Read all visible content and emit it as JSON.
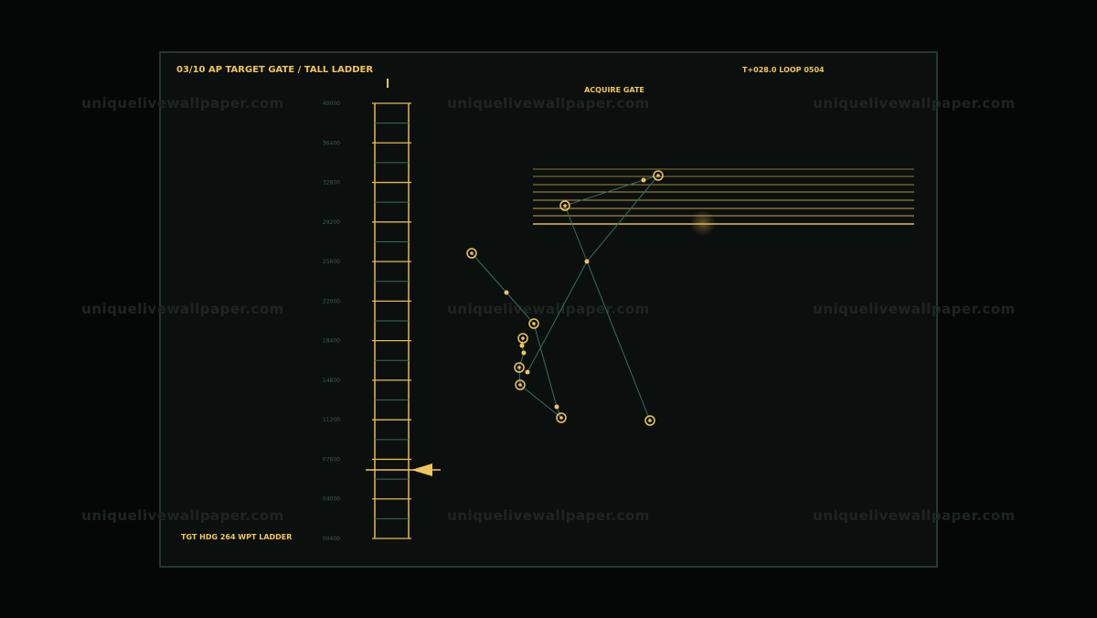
{
  "header": {
    "title": "03/10  AP TARGET GATE / TALL LADDER",
    "status": "T+028.0  LOOP 0504"
  },
  "gate": {
    "label": "ACQUIRE  GATE"
  },
  "ladder": {
    "labels": [
      "40000",
      "36400",
      "32800",
      "29200",
      "25600",
      "22000",
      "18400",
      "14800",
      "11200",
      "07600",
      "04000",
      "00400"
    ]
  },
  "footer": {
    "label": "TGT HDG 264  WPT LADDER"
  },
  "watermark": "uniquelivewallpaper.com"
}
